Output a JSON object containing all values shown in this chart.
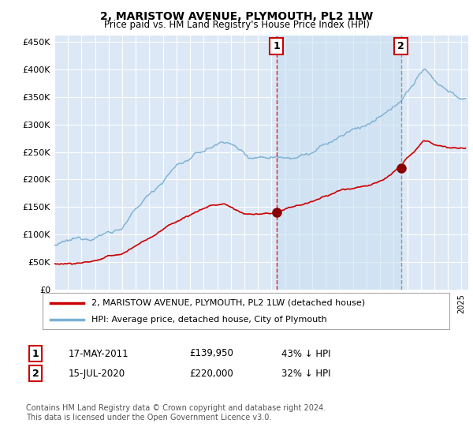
{
  "title": "2, MARISTOW AVENUE, PLYMOUTH, PL2 1LW",
  "subtitle": "Price paid vs. HM Land Registry's House Price Index (HPI)",
  "yticks": [
    0,
    50000,
    100000,
    150000,
    200000,
    250000,
    300000,
    350000,
    400000,
    450000
  ],
  "ytick_labels": [
    "£0",
    "£50K",
    "£100K",
    "£150K",
    "£200K",
    "£250K",
    "£300K",
    "£350K",
    "£400K",
    "£450K"
  ],
  "ylim": [
    0,
    462000
  ],
  "xlim_start": 1995.0,
  "xlim_end": 2025.5,
  "plot_bg_color": "#dce8f5",
  "grid_color": "#ffffff",
  "hpi_color": "#7aafd4",
  "price_color": "#cc0000",
  "shade_color": "#c8dbef",
  "t1_x": 2011.37,
  "t1_y": 139950,
  "t2_x": 2020.54,
  "t2_y": 220000,
  "legend_line1": "2, MARISTOW AVENUE, PLYMOUTH, PL2 1LW (detached house)",
  "legend_line2": "HPI: Average price, detached house, City of Plymouth",
  "footer": "Contains HM Land Registry data © Crown copyright and database right 2024.\nThis data is licensed under the Open Government Licence v3.0.",
  "table_row1": [
    "1",
    "17-MAY-2011",
    "£139,950",
    "43% ↓ HPI"
  ],
  "table_row2": [
    "2",
    "15-JUL-2020",
    "£220,000",
    "32% ↓ HPI"
  ]
}
